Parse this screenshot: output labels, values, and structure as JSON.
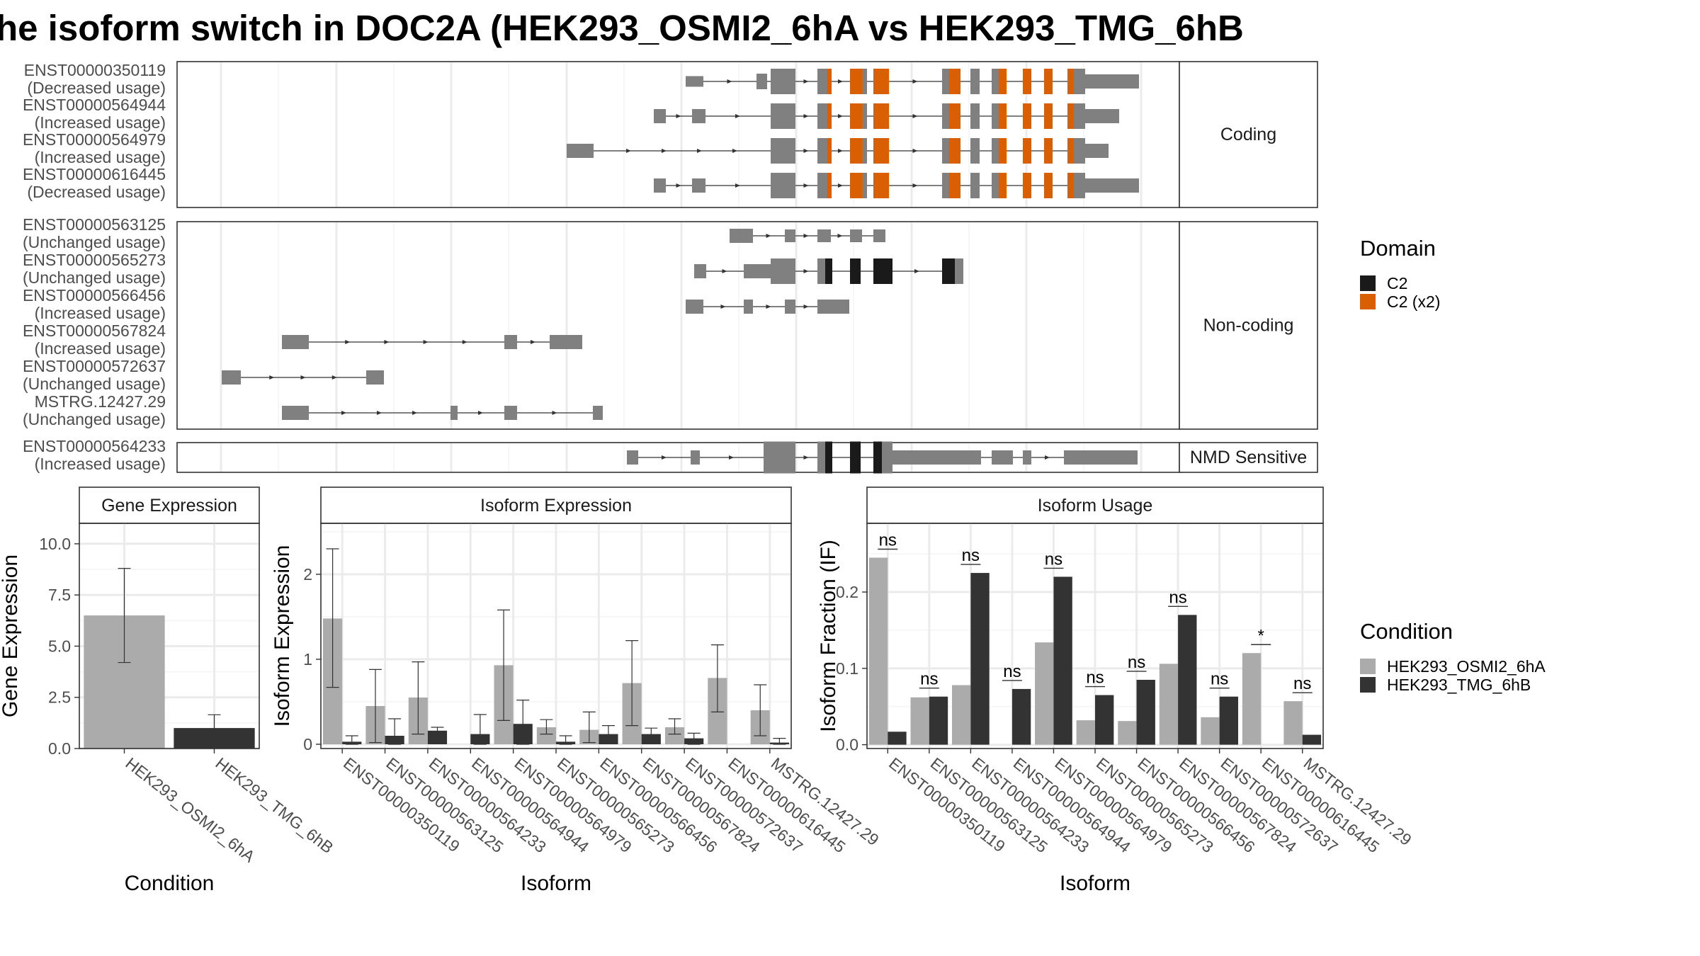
{
  "title": "he isoform switch in DOC2A (HEK293_OSMI2_6hA vs HEK293_TMG_6hB",
  "structure": {
    "facets": [
      "Coding",
      "Non-coding",
      "NMD Sensitive"
    ],
    "transcripts": [
      {
        "id": "ENST00000350119",
        "usage": "(Decreased usage)",
        "facet": "Coding"
      },
      {
        "id": "ENST00000564944",
        "usage": "(Increased usage)",
        "facet": "Coding"
      },
      {
        "id": "ENST00000564979",
        "usage": "(Increased usage)",
        "facet": "Coding"
      },
      {
        "id": "ENST00000616445",
        "usage": "(Decreased usage)",
        "facet": "Coding"
      },
      {
        "id": "ENST00000563125",
        "usage": "(Unchanged usage)",
        "facet": "Non-coding"
      },
      {
        "id": "ENST00000565273",
        "usage": "(Unchanged usage)",
        "facet": "Non-coding"
      },
      {
        "id": "ENST00000566456",
        "usage": "(Increased usage)",
        "facet": "Non-coding"
      },
      {
        "id": "ENST00000567824",
        "usage": "(Increased usage)",
        "facet": "Non-coding"
      },
      {
        "id": "ENST00000572637",
        "usage": "(Unchanged usage)",
        "facet": "Non-coding"
      },
      {
        "id": "MSTRG.12427.29",
        "usage": "(Unchanged usage)",
        "facet": "Non-coding"
      },
      {
        "id": "ENST00000564233",
        "usage": "(Increased usage)",
        "facet": "NMD Sensitive"
      }
    ]
  },
  "legend_domain": {
    "title": "Domain",
    "items": [
      {
        "label": "C2",
        "color": "#1a1a1a"
      },
      {
        "label": "C2 (x2)",
        "color": "#d95f02"
      }
    ]
  },
  "legend_condition": {
    "title": "Condition",
    "items": [
      {
        "label": "HEK293_OSMI2_6hA",
        "color": "#ababab"
      },
      {
        "label": "HEK293_TMG_6hB",
        "color": "#333333"
      }
    ]
  },
  "chart_data": [
    {
      "type": "bar",
      "title": "Gene Expression",
      "xlabel": "Condition",
      "ylabel": "Gene Expression",
      "ylim": [
        0,
        11
      ],
      "yticks": [
        0,
        2.5,
        5,
        7.5,
        10
      ],
      "ytick_labels": [
        "0.0",
        "2.5",
        "5.0",
        "7.5",
        "10.0"
      ],
      "categories": [
        "HEK293_OSMI2_6hA",
        "HEK293_TMG_6hB"
      ],
      "values": [
        6.5,
        1.0
      ],
      "error_low": [
        4.2,
        0.4
      ],
      "error_high": [
        8.8,
        1.65
      ]
    },
    {
      "type": "bar",
      "title": "Isoform Expression",
      "xlabel": "Isoform",
      "ylabel": "Isoform Expression",
      "ylim": [
        -0.05,
        2.6
      ],
      "yticks": [
        0,
        1,
        2
      ],
      "ytick_labels": [
        "0",
        "1",
        "2"
      ],
      "categories": [
        "ENST00000350119",
        "ENST00000563125",
        "ENST00000564233",
        "ENST00000564944",
        "ENST00000564979",
        "ENST00000565273",
        "ENST00000566456",
        "ENST00000567824",
        "ENST00000572637",
        "ENST00000616445",
        "MSTRG.12427.29"
      ],
      "series": [
        {
          "name": "HEK293_OSMI2_6hA",
          "values": [
            1.48,
            0.45,
            0.55,
            0.0,
            0.93,
            0.2,
            0.17,
            0.72,
            0.2,
            0.78,
            0.4
          ],
          "error_low": [
            0.67,
            0.02,
            0.12,
            0.0,
            0.28,
            0.12,
            0.02,
            0.22,
            0.12,
            0.38,
            0.1
          ],
          "error_high": [
            2.3,
            0.88,
            0.97,
            0.0,
            1.58,
            0.29,
            0.38,
            1.22,
            0.3,
            1.17,
            0.7
          ]
        },
        {
          "name": "HEK293_TMG_6hB",
          "values": [
            0.03,
            0.1,
            0.16,
            0.12,
            0.24,
            0.03,
            0.12,
            0.12,
            0.07,
            0.0,
            0.02
          ],
          "error_low": [
            0.0,
            0.0,
            0.14,
            0.0,
            0.0,
            0.0,
            0.02,
            0.04,
            0.0,
            0.0,
            0.0
          ],
          "error_high": [
            0.1,
            0.3,
            0.2,
            0.35,
            0.52,
            0.1,
            0.22,
            0.19,
            0.13,
            0.0,
            0.07
          ]
        }
      ]
    },
    {
      "type": "bar",
      "title": "Isoform Usage",
      "xlabel": "Isoform",
      "ylabel": "Isoform Fraction (IF)",
      "ylim": [
        -0.005,
        0.29
      ],
      "yticks": [
        0,
        0.1,
        0.2
      ],
      "ytick_labels": [
        "0.0",
        "0.1",
        "0.2"
      ],
      "categories": [
        "ENST00000350119",
        "ENST00000563125",
        "ENST00000564233",
        "ENST00000564944",
        "ENST00000564979",
        "ENST00000565273",
        "ENST00000566456",
        "ENST00000567824",
        "ENST00000572637",
        "ENST00000616445",
        "MSTRG.12427.29"
      ],
      "series": [
        {
          "name": "HEK293_OSMI2_6hA",
          "values": [
            0.245,
            0.062,
            0.078,
            0.0,
            0.134,
            0.032,
            0.031,
            0.106,
            0.036,
            0.12,
            0.057
          ]
        },
        {
          "name": "HEK293_TMG_6hB",
          "values": [
            0.017,
            0.063,
            0.225,
            0.073,
            0.22,
            0.065,
            0.085,
            0.17,
            0.063,
            0.0,
            0.013
          ]
        }
      ],
      "significance": [
        "ns",
        "ns",
        "ns",
        "ns",
        "ns",
        "ns",
        "ns",
        "ns",
        "ns",
        "*",
        "ns"
      ]
    }
  ]
}
